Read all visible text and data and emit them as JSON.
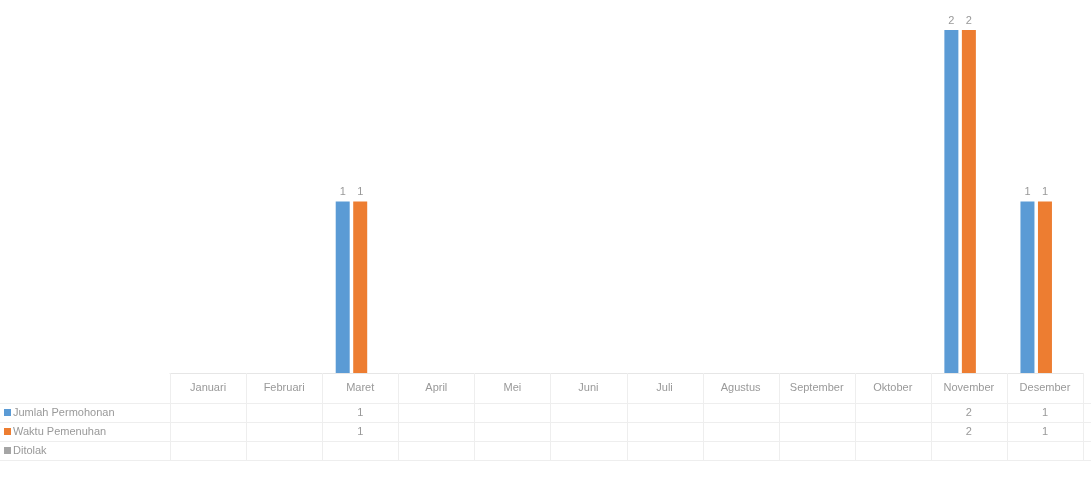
{
  "chart_data": {
    "type": "bar",
    "categories": [
      "Januari",
      "Februari",
      "Maret",
      "April",
      "Mei",
      "Juni",
      "Juli",
      "Agustus",
      "September",
      "Oktober",
      "November",
      "Desember"
    ],
    "series": [
      {
        "name": "Jumlah Permohonan",
        "color": "#5b9bd5",
        "values": [
          null,
          null,
          1,
          null,
          null,
          null,
          null,
          null,
          null,
          null,
          2,
          1
        ],
        "value_labels": [
          null,
          null,
          "1",
          null,
          null,
          null,
          null,
          null,
          null,
          null,
          "2",
          "1"
        ]
      },
      {
        "name": "Waktu Pemenuhan",
        "color": "#ed7d31",
        "values": [
          null,
          null,
          1,
          null,
          null,
          null,
          null,
          null,
          null,
          null,
          2,
          1
        ],
        "value_labels": [
          null,
          null,
          "1",
          null,
          null,
          null,
          null,
          null,
          null,
          null,
          "2",
          "1"
        ]
      },
      {
        "name": "Ditolak",
        "color": "#a5a5a5",
        "values": [
          null,
          null,
          null,
          null,
          null,
          null,
          null,
          null,
          null,
          null,
          null,
          null
        ]
      }
    ],
    "legend": "bottom left"
  }
}
